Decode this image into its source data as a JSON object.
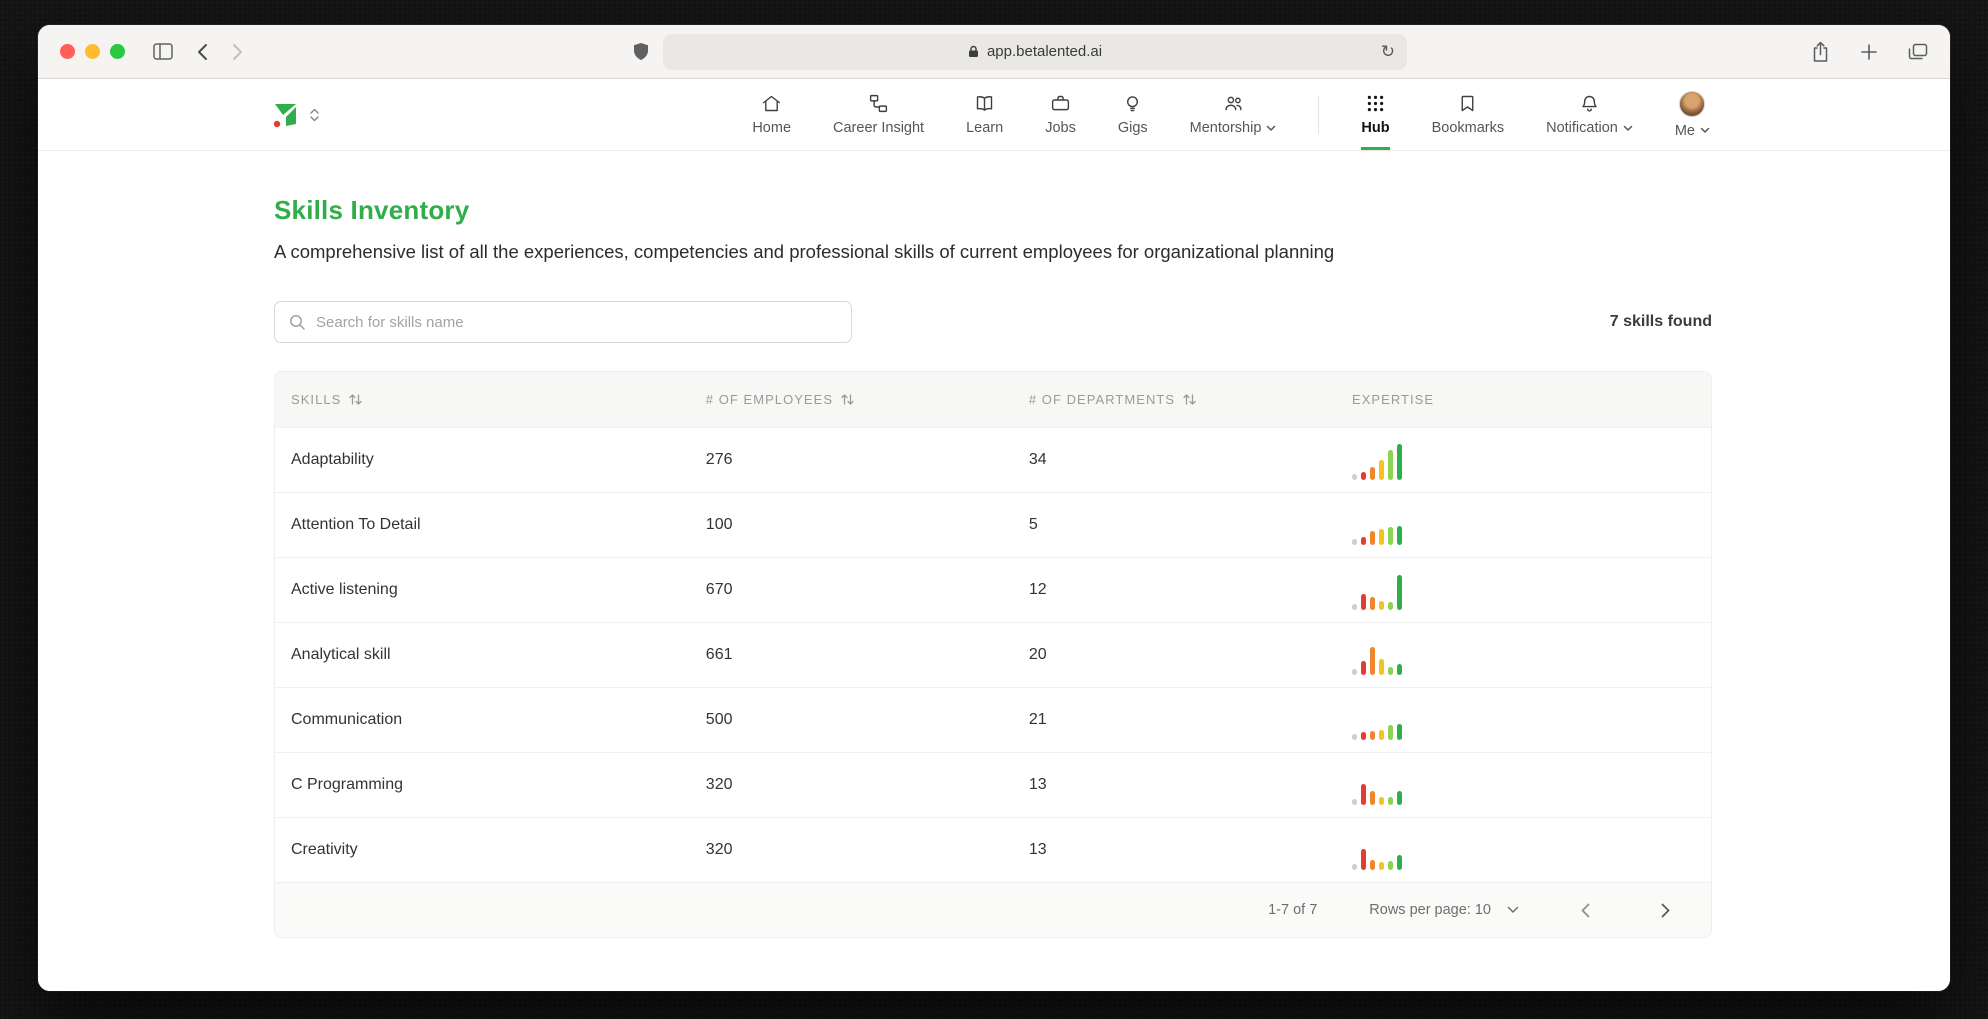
{
  "browser": {
    "url": "app.betalented.ai"
  },
  "nav": {
    "items": [
      {
        "label": "Home"
      },
      {
        "label": "Career Insight"
      },
      {
        "label": "Learn"
      },
      {
        "label": "Jobs"
      },
      {
        "label": "Gigs"
      },
      {
        "label": "Mentorship"
      },
      {
        "label": "Hub"
      },
      {
        "label": "Bookmarks"
      },
      {
        "label": "Notification"
      },
      {
        "label": "Me"
      }
    ]
  },
  "page": {
    "title": "Skills Inventory",
    "subtitle": "A comprehensive list of all the experiences, competencies and professional skills of current employees for organizational planning",
    "search_placeholder": "Search for skills name",
    "results_count": "7 skills found"
  },
  "table": {
    "columns": [
      {
        "label": "SKILLS"
      },
      {
        "label": "# OF EMPLOYEES"
      },
      {
        "label": "# OF DEPARTMENTS"
      },
      {
        "label": "EXPERTISE"
      }
    ],
    "expertise_palette": [
      "#cfcfcf",
      "#e23c33",
      "#f0862b",
      "#f6c21c",
      "#8bd44f",
      "#2fae49"
    ],
    "rows": [
      {
        "skill": "Adaptability",
        "employees": "276",
        "departments": "34",
        "expertise": [
          6,
          8,
          13,
          20,
          30,
          36
        ]
      },
      {
        "skill": "Attention To Detail",
        "employees": "100",
        "departments": "5",
        "expertise": [
          6,
          8,
          14,
          16,
          18,
          19
        ]
      },
      {
        "skill": "Active listening",
        "employees": "670",
        "departments": "12",
        "expertise": [
          6,
          16,
          13,
          9,
          8,
          35
        ]
      },
      {
        "skill": "Analytical skill",
        "employees": "661",
        "departments": "20",
        "expertise": [
          6,
          14,
          28,
          16,
          8,
          11
        ]
      },
      {
        "skill": "Communication",
        "employees": "500",
        "departments": "21",
        "expertise": [
          6,
          8,
          9,
          10,
          15,
          16
        ]
      },
      {
        "skill": "C Programming",
        "employees": "320",
        "departments": "13",
        "expertise": [
          6,
          21,
          14,
          8,
          8,
          14
        ]
      },
      {
        "skill": "Creativity",
        "employees": "320",
        "departments": "13",
        "expertise": [
          6,
          21,
          10,
          8,
          9,
          15
        ]
      }
    ],
    "footer": {
      "range": "1-7 of 7",
      "rows_per_page": "Rows per page: 10"
    }
  },
  "colors": {
    "accent_green": "#2fae49",
    "logo_red": "#e23c33"
  }
}
